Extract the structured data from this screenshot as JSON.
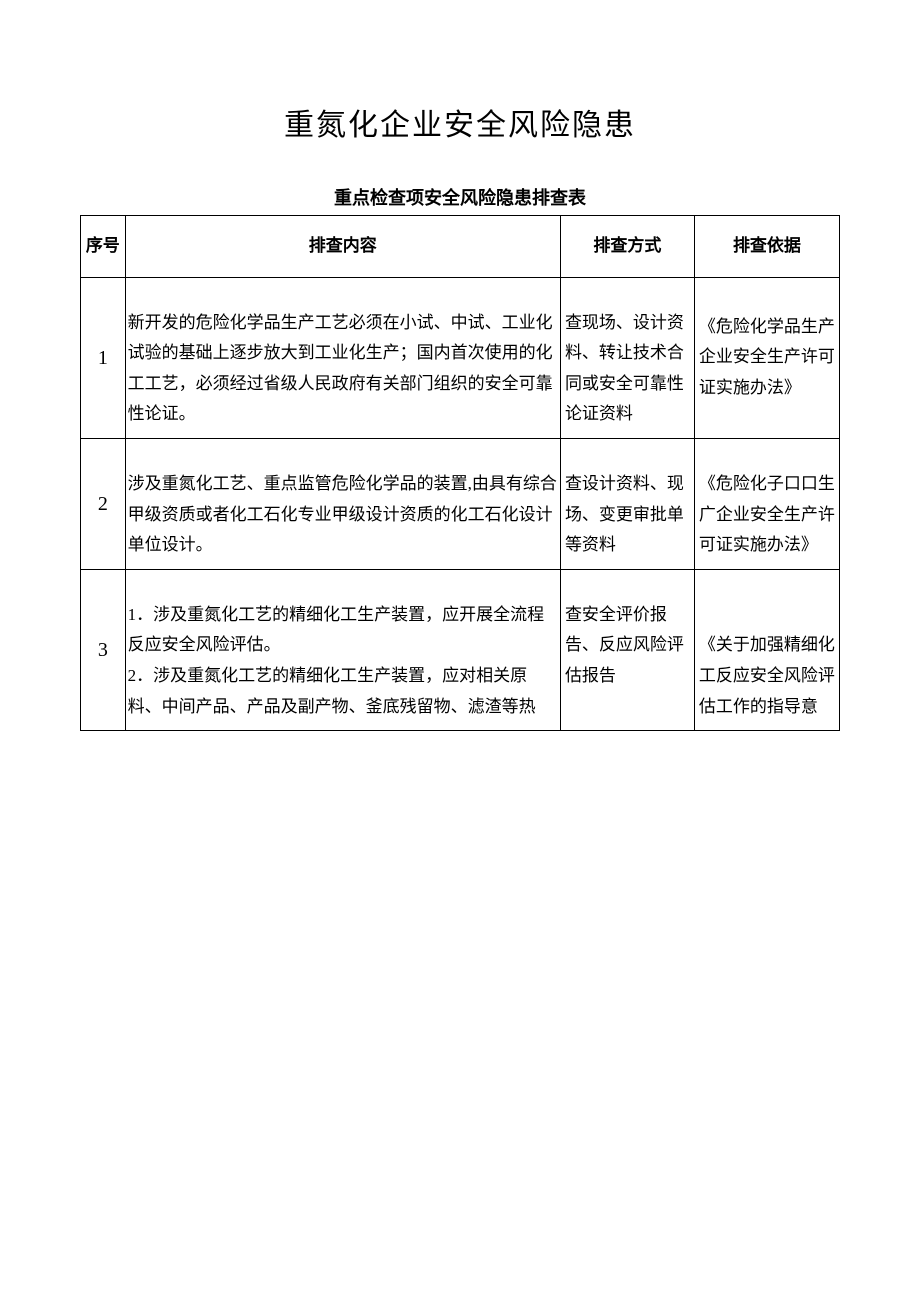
{
  "document": {
    "main_title": "重氮化企业安全风险隐患",
    "sub_title": "重点检查项安全风险隐患排查表",
    "table": {
      "headers": {
        "seq": "序号",
        "content": "排查内容",
        "method": "排查方式",
        "basis": "排查依据"
      },
      "rows": [
        {
          "seq": "1",
          "content": "新开发的危险化学品生产工艺必须在小试、中试、工业化试验的基础上逐步放大到工业化生产；国内首次使用的化工工艺，必须经过省级人民政府有关部门组织的安全可靠性论证。",
          "method": "查现场、设计资料、转让技术合同或安全可靠性论证资料",
          "basis": "《危险化学品生产企业安全生产许可证实施办法》"
        },
        {
          "seq": "2",
          "content": "涉及重氮化工艺、重点监管危险化学品的装置,由具有综合甲级资质或者化工石化专业甲级设计资质的化工石化设计单位设计。",
          "method": "查设计资料、现场、变更审批单等资料",
          "basis": "《危险化子口口生广企业安全生产许可证实施办法》"
        },
        {
          "seq": "3",
          "content": "1．涉及重氮化工艺的精细化工生产装置，应开展全流程反应安全风险评估。\n2．涉及重氮化工艺的精细化工生产装置，应对相关原料、中间产品、产品及副产物、釜底残留物、滤渣等热",
          "method": "查安全评价报告、反应风险评估报告",
          "basis": "《关于加强精细化工反应安全风险评估工作的指导意"
        }
      ]
    },
    "styling": {
      "background_color": "#ffffff",
      "text_color": "#000000",
      "border_color": "#000000",
      "main_title_fontsize": 30,
      "sub_title_fontsize": 18,
      "cell_fontsize": 17,
      "font_family": "SimSun"
    }
  }
}
